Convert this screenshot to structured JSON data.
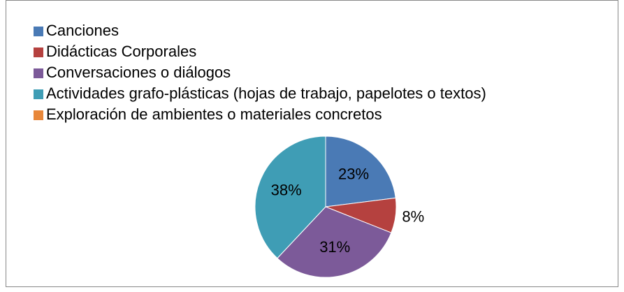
{
  "chart_data": {
    "type": "pie",
    "categories": [
      "Canciones",
      "Didácticas Corporales",
      "Conversaciones o diálogos",
      "Actividades grafo-plásticas (hojas de trabajo, papelotes o textos)",
      "Exploración de ambientes o materiales concretos"
    ],
    "values": [
      23,
      8,
      31,
      38,
      0
    ],
    "value_labels": [
      "23%",
      "8%",
      "31%",
      "38%",
      null
    ],
    "colors": [
      "#4a7ab5",
      "#b5413f",
      "#7c5a99",
      "#3f9db5",
      "#e8873a"
    ],
    "legend": "top-left"
  }
}
